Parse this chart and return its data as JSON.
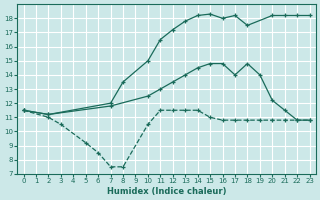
{
  "xlabel": "Humidex (Indice chaleur)",
  "bg_color": "#cce8e8",
  "grid_color": "#ffffff",
  "line_color": "#1a6b5a",
  "xlim": [
    -0.5,
    23.5
  ],
  "ylim": [
    7,
    19
  ],
  "xticks": [
    0,
    1,
    2,
    3,
    4,
    5,
    6,
    7,
    8,
    9,
    10,
    11,
    12,
    13,
    14,
    15,
    16,
    17,
    18,
    19,
    20,
    21,
    22,
    23
  ],
  "yticks": [
    7,
    8,
    9,
    10,
    11,
    12,
    13,
    14,
    15,
    16,
    17,
    18
  ],
  "line1_x": [
    0,
    2,
    3,
    5,
    6,
    7,
    8,
    10,
    11,
    12,
    13,
    14,
    15,
    16,
    17,
    18,
    19,
    20,
    21,
    22,
    23
  ],
  "line1_y": [
    11.5,
    11.0,
    10.5,
    9.2,
    8.5,
    7.5,
    7.5,
    10.5,
    11.5,
    11.5,
    11.5,
    11.5,
    11.0,
    10.8,
    10.8,
    10.8,
    10.8,
    10.8,
    10.8,
    10.8,
    10.8
  ],
  "line2_x": [
    0,
    2,
    7,
    10,
    11,
    12,
    13,
    14,
    15,
    16,
    17,
    18,
    19,
    20,
    21,
    22,
    23
  ],
  "line2_y": [
    11.5,
    11.2,
    11.8,
    12.5,
    13.0,
    13.5,
    14.0,
    14.5,
    14.8,
    14.8,
    14.0,
    14.8,
    14.0,
    12.2,
    11.5,
    10.8,
    10.8
  ],
  "line3_x": [
    0,
    2,
    7,
    8,
    10,
    11,
    12,
    13,
    14,
    15,
    16,
    17,
    18,
    20,
    21,
    22,
    23
  ],
  "line3_y": [
    11.5,
    11.2,
    12.0,
    13.5,
    15.0,
    16.5,
    17.2,
    17.8,
    18.2,
    18.3,
    18.0,
    18.2,
    17.5,
    18.2,
    18.2,
    18.2,
    18.2
  ],
  "line1_style": "dashed",
  "line2_style": "solid",
  "line3_style": "solid"
}
